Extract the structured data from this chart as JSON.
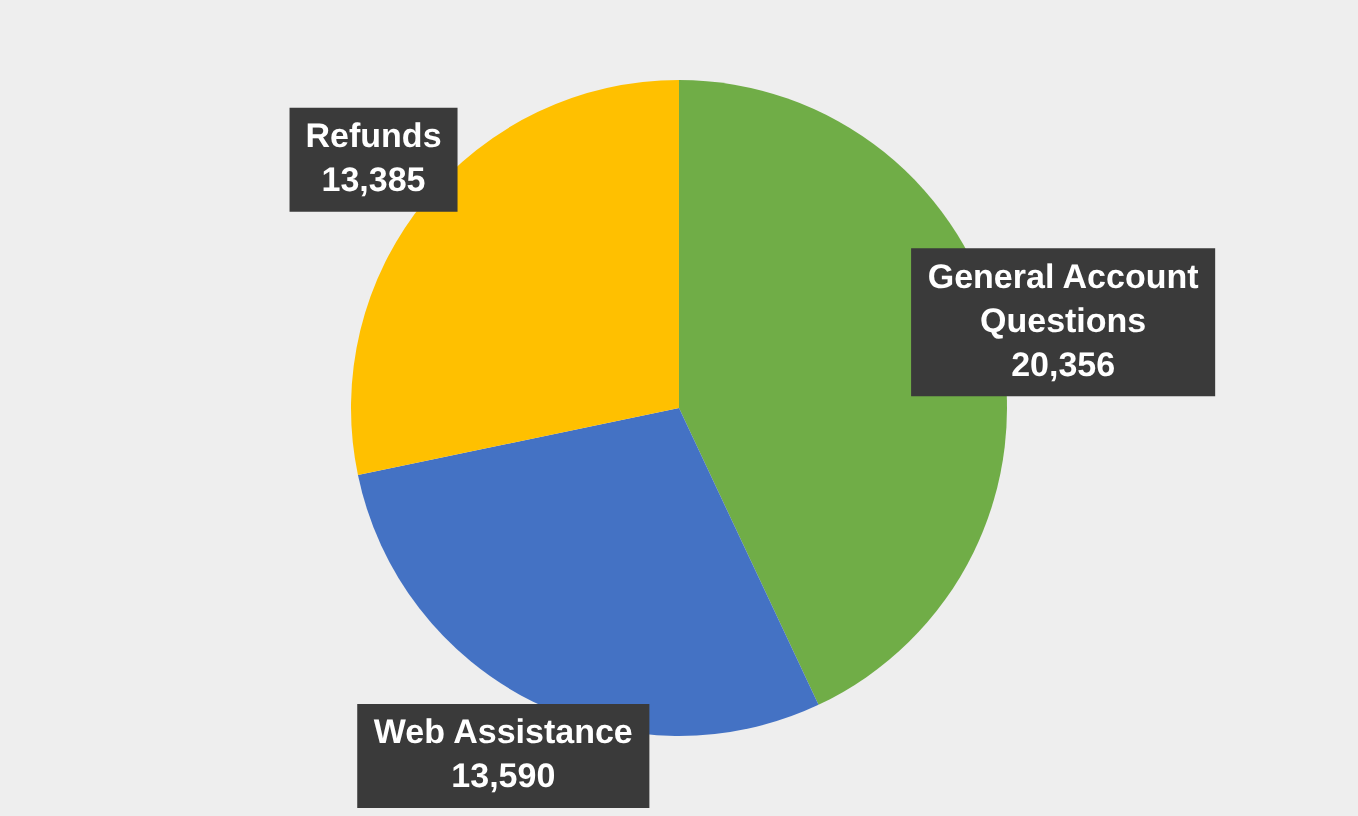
{
  "chart_data": {
    "type": "pie",
    "categories": [
      "General Account Questions",
      "Web Assistance",
      "Refunds"
    ],
    "values": [
      20356,
      13590,
      13385
    ],
    "colors": [
      "#70ad47",
      "#4472c4",
      "#ffc000"
    ],
    "value_labels": [
      "20,356",
      "13,590",
      "13,385"
    ],
    "legend": false
  }
}
